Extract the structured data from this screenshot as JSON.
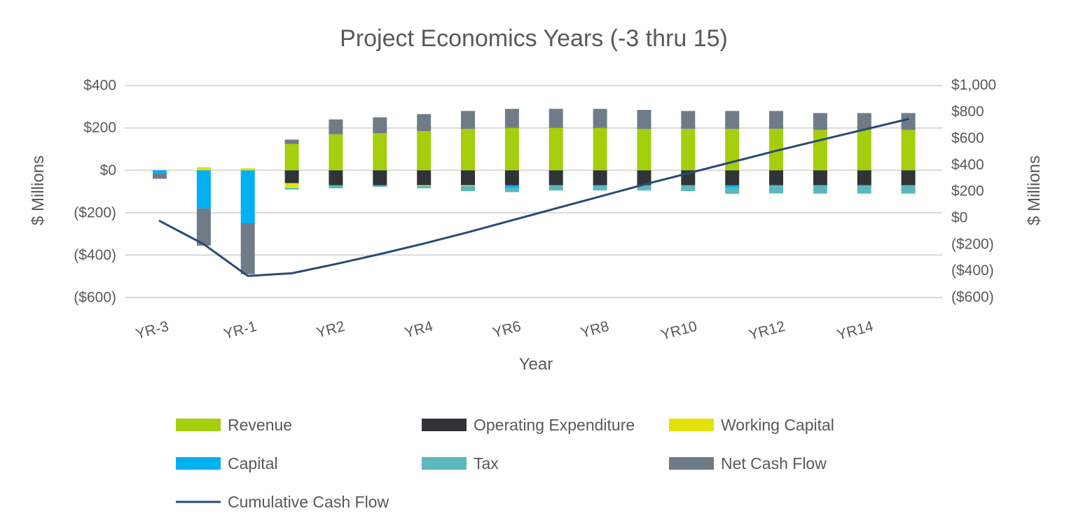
{
  "chart_data": {
    "type": "bar",
    "subtype": "stacked-bar-with-line",
    "title": "Project Economics Years (-3 thru 15)",
    "xlabel": "Year",
    "ylabel_left": "$ Millions",
    "ylabel_right": "$ Millions",
    "grid": true,
    "legend_position": "bottom",
    "categories": [
      "YR-3",
      "YR-2",
      "YR-1",
      "YR1",
      "YR2",
      "YR3",
      "YR4",
      "YR5",
      "YR6",
      "YR7",
      "YR8",
      "YR9",
      "YR10",
      "YR11",
      "YR12",
      "YR13",
      "YR14",
      "YR15"
    ],
    "x_tick_labels": [
      "YR-3",
      "YR-1",
      "YR2",
      "YR4",
      "YR6",
      "YR8",
      "YR10",
      "YR12",
      "YR14"
    ],
    "x_tick_indices": [
      0,
      2,
      4,
      6,
      8,
      10,
      12,
      14,
      16
    ],
    "left_axis": {
      "range": [
        -600,
        400
      ],
      "tick_values": [
        400,
        200,
        0,
        -200,
        -400,
        -600
      ],
      "tick_labels": [
        "$400",
        "$200",
        "$0",
        "($200)",
        "($400)",
        "($600)"
      ]
    },
    "right_axis": {
      "range": [
        -600,
        1000
      ],
      "tick_values": [
        1000,
        800,
        600,
        400,
        200,
        0,
        -200,
        -400,
        -600
      ],
      "tick_labels": [
        "$1,000",
        "$800",
        "$600",
        "$400",
        "$200",
        "$0",
        "($200)",
        "($400)",
        "($600)"
      ]
    },
    "series": [
      {
        "name": "Revenue",
        "color": "#A5CE0D",
        "values": [
          0,
          0,
          0,
          125,
          170,
          175,
          185,
          195,
          200,
          200,
          200,
          195,
          195,
          195,
          195,
          190,
          190,
          190
        ]
      },
      {
        "name": "Operating Expenditure",
        "color": "#303436",
        "values": [
          0,
          0,
          0,
          -60,
          -70,
          -70,
          -70,
          -70,
          -70,
          -70,
          -70,
          -70,
          -70,
          -70,
          -70,
          -70,
          -70,
          -70
        ]
      },
      {
        "name": "Working Capital",
        "color": "#E3E30B",
        "values": [
          0,
          15,
          10,
          -25,
          0,
          0,
          -5,
          -5,
          0,
          0,
          0,
          0,
          0,
          0,
          0,
          0,
          0,
          0
        ]
      },
      {
        "name": "Capital",
        "color": "#00B0F0",
        "values": [
          -15,
          -180,
          -250,
          -5,
          0,
          0,
          0,
          0,
          -13,
          0,
          0,
          0,
          0,
          -10,
          0,
          0,
          0,
          0
        ]
      },
      {
        "name": "Tax",
        "color": "#5BB8BD",
        "values": [
          0,
          0,
          0,
          0,
          -15,
          -8,
          -10,
          -23,
          -20,
          -25,
          -25,
          -25,
          -28,
          -31,
          -39,
          -40,
          -40,
          -40
        ]
      },
      {
        "name": "Net Cash Flow",
        "color": "#6F7C88",
        "values": [
          -25,
          -175,
          -240,
          20,
          70,
          75,
          80,
          85,
          90,
          90,
          90,
          90,
          85,
          85,
          85,
          80,
          80,
          80
        ]
      }
    ],
    "line_series": {
      "name": "Cumulative Cash Flow",
      "color": "#2A4A76",
      "axis": "right",
      "values": [
        -25,
        -200,
        -440,
        -420,
        -350,
        -275,
        -195,
        -110,
        -20,
        70,
        160,
        250,
        335,
        420,
        505,
        585,
        665,
        745
      ]
    },
    "legend_rows": [
      [
        "Revenue",
        "Operating Expenditure",
        "Working Capital"
      ],
      [
        "Capital",
        "Tax",
        "Net Cash Flow"
      ],
      [
        "Cumulative Cash Flow"
      ]
    ],
    "colors": {
      "text": "#595959",
      "gridline": "#D9D9D9",
      "background": "#FFFFFF"
    }
  }
}
